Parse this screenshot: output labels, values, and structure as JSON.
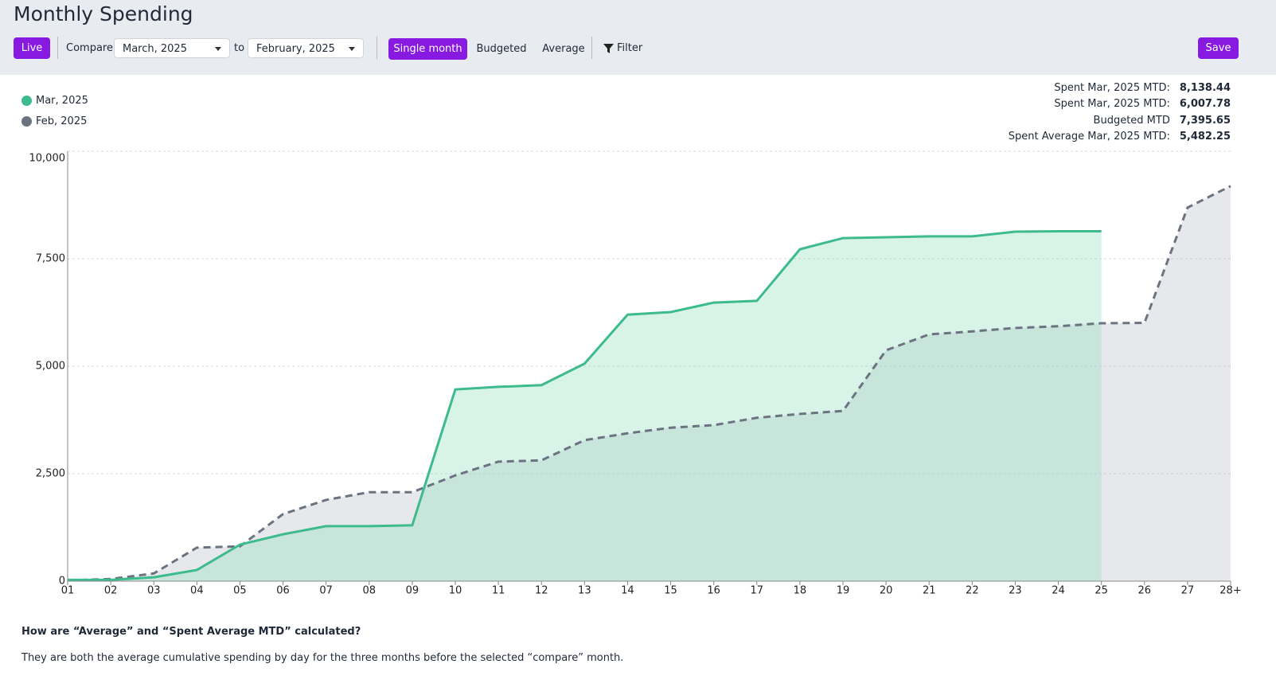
{
  "header": {
    "title": "Monthly Spending"
  },
  "toolbar": {
    "live": "Live",
    "compare_label": "Compare",
    "from_month": "March, 2025",
    "to_label": "to",
    "to_month": "February, 2025",
    "modes": [
      "Single month",
      "Budgeted",
      "Average"
    ],
    "filter": "Filter",
    "save": "Save"
  },
  "stats": [
    {
      "label": "Spent Mar, 2025 MTD:",
      "value": "8,138.44"
    },
    {
      "label": "Spent Mar, 2025 MTD:",
      "value": "6,007.78"
    },
    {
      "label": "Budgeted MTD",
      "value": "7,395.65"
    },
    {
      "label": "Spent Average Mar, 2025 MTD:",
      "value": "5,482.25"
    }
  ],
  "chart_data": {
    "type": "area",
    "categories": [
      "01",
      "02",
      "03",
      "04",
      "05",
      "06",
      "07",
      "08",
      "09",
      "10",
      "11",
      "12",
      "13",
      "14",
      "15",
      "16",
      "17",
      "18",
      "19",
      "20",
      "21",
      "22",
      "23",
      "24",
      "25",
      "26",
      "27",
      "28+"
    ],
    "series": [
      {
        "name": "Feb, 2025",
        "color": "#6b7280",
        "fill": "#b9bcc6",
        "line_style": "dashed",
        "values": [
          20,
          50,
          180,
          780,
          810,
          1560,
          1890,
          2070,
          2070,
          2460,
          2780,
          2810,
          3280,
          3440,
          3570,
          3630,
          3800,
          3890,
          3960,
          5370,
          5740,
          5810,
          5890,
          5930,
          6000,
          6008,
          8690,
          9190
        ]
      },
      {
        "name": "Mar, 2025",
        "color": "#3dbb8c",
        "fill": "#8fe0c0",
        "line_style": "solid",
        "values": [
          30,
          30,
          90,
          260,
          850,
          1090,
          1280,
          1280,
          1300,
          4460,
          4520,
          4560,
          5060,
          6200,
          6260,
          6480,
          6520,
          7720,
          7980,
          8000,
          8020,
          8020,
          8130,
          8138,
          8138,
          null,
          null,
          null
        ]
      }
    ],
    "legend_order": [
      1,
      0
    ],
    "ylim": [
      0,
      10000
    ],
    "yticks": [
      0,
      {
        "value": 2500,
        "label": "2,500"
      },
      {
        "value": 5000,
        "label": "5,000"
      },
      {
        "value": 7500,
        "label": "7,500"
      },
      {
        "value": 10000,
        "label": "10,000"
      }
    ],
    "grid": true
  },
  "footer": {
    "question": "How are “Average” and “Spent Average MTD” calculated?",
    "answer": "They are both the average cumulative spending by day for the three months before the selected “compare” month."
  }
}
